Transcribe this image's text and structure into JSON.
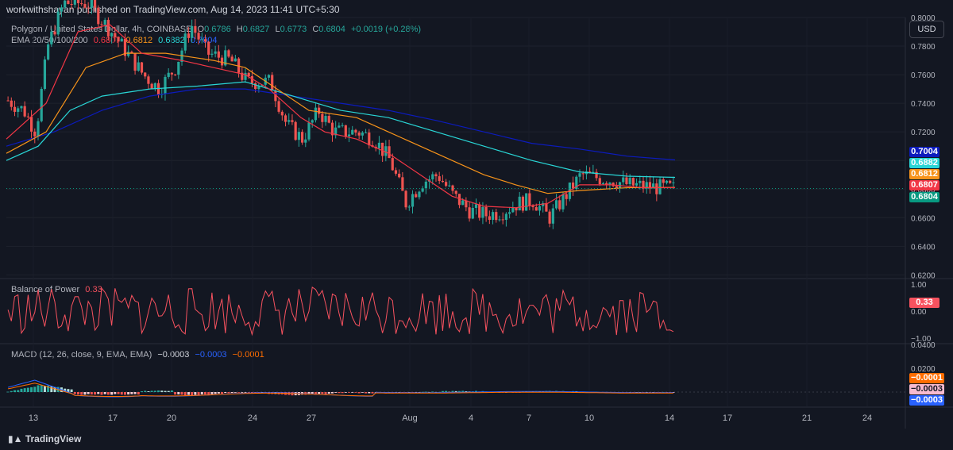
{
  "header": {
    "publisher": "workwithshayan published on TradingView.com, Aug 14, 2023 11:41 UTC+5:30"
  },
  "symbol_row": {
    "symbol": "Polygon / United States Dollar, 4h, COINBASE",
    "open_label": "O",
    "open": "0.6786",
    "high_label": "H",
    "high": "0.6827",
    "low_label": "L",
    "low": "0.6773",
    "close_label": "C",
    "close": "0.6804",
    "change": "+0.0019 (+0.28%)"
  },
  "ema_row": {
    "label": "EMA 20/50/100/200",
    "v20": "0.6807",
    "v50": "0.6812",
    "v100": "0.6882",
    "v200": "0.7004"
  },
  "bop_row": {
    "label": "Balance of Power",
    "value": "0.33"
  },
  "macd_row": {
    "label": "MACD (12, 26, close, 9, EMA, EMA)",
    "hist": "−0.0003",
    "macd": "−0.0003",
    "signal": "−0.0001"
  },
  "currency_button": "USD",
  "price_tags": [
    {
      "value": "0.7004",
      "color": "#0c1bbd"
    },
    {
      "value": "0.6882",
      "color": "#29d6d6"
    },
    {
      "value": "0.6812",
      "color": "#f7931a"
    },
    {
      "value": "0.6807",
      "color": "#f23645"
    },
    {
      "value": "0.6804",
      "color": "#089981"
    }
  ],
  "bop_tag": {
    "value": "0.33",
    "color": "#f7525f"
  },
  "macd_tags": [
    {
      "value": "−0.0001",
      "color": "#ff6d00"
    },
    {
      "value": "−0.0003",
      "color": "#f8bbd0"
    },
    {
      "value": "−0.0003",
      "color": "#2962ff"
    }
  ],
  "footer": {
    "brand": "TradingView"
  },
  "colors": {
    "up": "#26a69a",
    "down": "#ef5350",
    "ema20": "#f23645",
    "ema50": "#f7931a",
    "ema100": "#29d6d6",
    "ema200": "#0c1bbd",
    "bop": "#f7525f",
    "macd": "#2962ff",
    "signal": "#ff6d00"
  },
  "chart_data": {
    "type": "candlestick",
    "price_axis": {
      "ticks": [
        "0.8000",
        "0.7800",
        "0.7600",
        "0.7400",
        "0.7200",
        "0.7000",
        "0.6800",
        "0.6600",
        "0.6400",
        "0.6200"
      ],
      "ylim": [
        0.618,
        0.8
      ],
      "current": 0.6804
    },
    "bop_axis": {
      "ticks": [
        "1.00",
        "0.00",
        "−1.00"
      ],
      "ylim": [
        -1.0,
        1.0
      ]
    },
    "macd_axis": {
      "ticks": [
        "0.0400",
        "0.0200"
      ],
      "ylim": [
        -0.012,
        0.04
      ]
    },
    "date_ticks": [
      "13",
      "17",
      "20",
      "24",
      "27",
      "Aug",
      "4",
      "7",
      "10",
      "14",
      "17",
      "21",
      "24"
    ],
    "ema_trend": {
      "ema20": [
        [
          0,
          0.715
        ],
        [
          0.05,
          0.74
        ],
        [
          0.09,
          0.79
        ],
        [
          0.13,
          0.795
        ],
        [
          0.17,
          0.775
        ],
        [
          0.22,
          0.77
        ],
        [
          0.26,
          0.765
        ],
        [
          0.3,
          0.76
        ],
        [
          0.33,
          0.75
        ],
        [
          0.37,
          0.73
        ],
        [
          0.4,
          0.72
        ],
        [
          0.44,
          0.715
        ],
        [
          0.48,
          0.705
        ],
        [
          0.52,
          0.69
        ],
        [
          0.56,
          0.675
        ],
        [
          0.6,
          0.668
        ],
        [
          0.64,
          0.667
        ],
        [
          0.68,
          0.67
        ],
        [
          0.72,
          0.683
        ],
        [
          0.76,
          0.683
        ],
        [
          0.8,
          0.681
        ],
        [
          0.84,
          0.681
        ]
      ],
      "ema50": [
        [
          0,
          0.705
        ],
        [
          0.05,
          0.72
        ],
        [
          0.1,
          0.765
        ],
        [
          0.15,
          0.775
        ],
        [
          0.2,
          0.775
        ],
        [
          0.26,
          0.77
        ],
        [
          0.3,
          0.765
        ],
        [
          0.34,
          0.75
        ],
        [
          0.38,
          0.735
        ],
        [
          0.44,
          0.73
        ],
        [
          0.48,
          0.72
        ],
        [
          0.52,
          0.71
        ],
        [
          0.56,
          0.7
        ],
        [
          0.6,
          0.69
        ],
        [
          0.64,
          0.683
        ],
        [
          0.68,
          0.677
        ],
        [
          0.72,
          0.679
        ],
        [
          0.78,
          0.681
        ],
        [
          0.84,
          0.6812
        ]
      ],
      "ema100": [
        [
          0,
          0.7
        ],
        [
          0.04,
          0.71
        ],
        [
          0.08,
          0.735
        ],
        [
          0.12,
          0.745
        ],
        [
          0.18,
          0.75
        ],
        [
          0.24,
          0.752
        ],
        [
          0.3,
          0.755
        ],
        [
          0.36,
          0.745
        ],
        [
          0.42,
          0.735
        ],
        [
          0.48,
          0.73
        ],
        [
          0.54,
          0.72
        ],
        [
          0.6,
          0.71
        ],
        [
          0.66,
          0.7
        ],
        [
          0.72,
          0.692
        ],
        [
          0.78,
          0.689
        ],
        [
          0.84,
          0.6882
        ]
      ],
      "ema200": [
        [
          0,
          0.71
        ],
        [
          0.06,
          0.72
        ],
        [
          0.12,
          0.735
        ],
        [
          0.18,
          0.745
        ],
        [
          0.24,
          0.75
        ],
        [
          0.3,
          0.75
        ],
        [
          0.36,
          0.745
        ],
        [
          0.42,
          0.74
        ],
        [
          0.48,
          0.735
        ],
        [
          0.54,
          0.728
        ],
        [
          0.6,
          0.72
        ],
        [
          0.66,
          0.712
        ],
        [
          0.72,
          0.708
        ],
        [
          0.78,
          0.703
        ],
        [
          0.84,
          0.7004
        ]
      ]
    }
  }
}
